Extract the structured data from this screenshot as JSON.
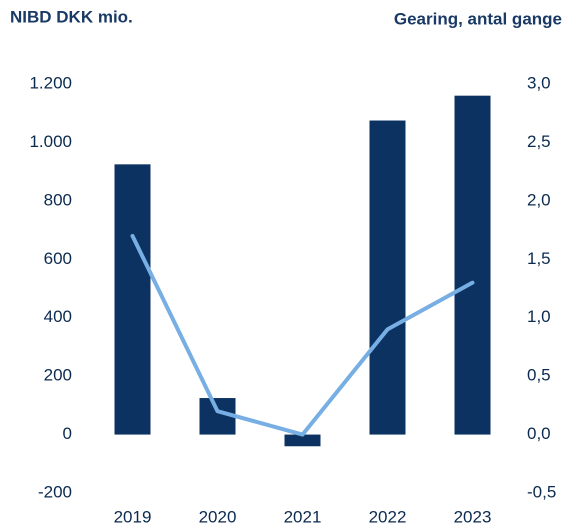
{
  "chart_data": {
    "type": "bar_line",
    "y_title": "NIBD DKK mio.",
    "y2_title": "Gearing, antal gange",
    "categories": [
      "2019",
      "2020",
      "2021",
      "2022",
      "2023"
    ],
    "series": [
      {
        "name": "NIBD DKK mio.",
        "type": "bar",
        "color": "#0b3260",
        "values": [
          925,
          125,
          -40,
          1075,
          1160
        ]
      },
      {
        "name": "Gearing, antal gange",
        "type": "line",
        "axis": "y2",
        "color": "#77aee3",
        "values": [
          1.7,
          0.2,
          0.0,
          0.9,
          1.3
        ]
      }
    ],
    "ylim": [
      -200,
      1200
    ],
    "yticks": [
      -200,
      0,
      200,
      400,
      600,
      800,
      {
        "value": 1000,
        "label": "1.000"
      },
      {
        "value": 1200,
        "label": "1.200"
      }
    ],
    "y2lim": [
      -0.5,
      3.0
    ],
    "y2ticks": [
      {
        "value": -0.5,
        "label": "-0,5"
      },
      {
        "value": 0,
        "label": "0,0"
      },
      {
        "value": 0.5,
        "label": "0,5"
      },
      {
        "value": 1.0,
        "label": "1,0"
      },
      {
        "value": 1.5,
        "label": "1,5"
      },
      {
        "value": 2.0,
        "label": "2,0"
      },
      {
        "value": 2.5,
        "label": "2,5"
      },
      {
        "value": 3.0,
        "label": "3,0"
      }
    ]
  }
}
